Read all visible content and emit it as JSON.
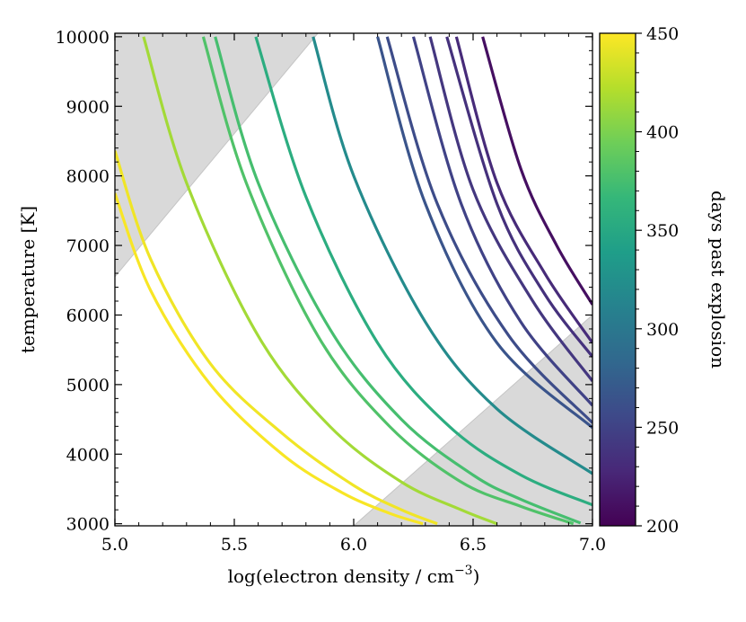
{
  "chart_data": {
    "type": "line",
    "xlabel": "log(electron density / cm",
    "xlabel_superscript": "−3",
    "xlabel_suffix": ")",
    "ylabel": "temperature [K]",
    "xlim": [
      5.0,
      7.0
    ],
    "ylim": [
      2970,
      10050
    ],
    "xticks": [
      5.0,
      5.5,
      6.0,
      6.5,
      7.0
    ],
    "xtick_labels": [
      "5.0",
      "5.5",
      "6.0",
      "6.5",
      "7.0"
    ],
    "yticks": [
      3000,
      4000,
      5000,
      6000,
      7000,
      8000,
      9000,
      10000
    ],
    "ytick_labels": [
      "3000",
      "4000",
      "5000",
      "6000",
      "7000",
      "8000",
      "9000",
      "10000"
    ],
    "colorbar": {
      "label": "days past explosion",
      "range": [
        200,
        450
      ],
      "ticks": [
        200,
        250,
        300,
        350,
        400,
        450
      ],
      "tick_labels": [
        "200",
        "250",
        "300",
        "350",
        "400",
        "450"
      ],
      "colormap": "viridis",
      "colors": [
        "#440154",
        "#482878",
        "#3e4989",
        "#31688e",
        "#26828e",
        "#1f9e89",
        "#35b779",
        "#6ece58",
        "#b5de2b",
        "#fde725"
      ]
    },
    "shaded_regions": [
      {
        "polygon": [
          [
            5.0,
            6550
          ],
          [
            5.0,
            10050
          ],
          [
            5.85,
            10050
          ]
        ],
        "color": "#d9d9d9"
      },
      {
        "polygon": [
          [
            6.0,
            2970
          ],
          [
            7.0,
            6000
          ],
          [
            7.0,
            2970
          ]
        ],
        "color": "#d9d9d9"
      }
    ],
    "series": [
      {
        "day": 210,
        "x": [
          6.54,
          6.7,
          6.85,
          7.0
        ],
        "y": [
          10000,
          8100,
          7000,
          6150
        ]
      },
      {
        "day": 230,
        "x": [
          6.43,
          6.6,
          6.8,
          7.0
        ],
        "y": [
          10000,
          7900,
          6600,
          5600
        ]
      },
      {
        "day": 235,
        "x": [
          6.39,
          6.6,
          6.8,
          7.0
        ],
        "y": [
          10000,
          7600,
          6300,
          5400
        ]
      },
      {
        "day": 240,
        "x": [
          6.32,
          6.5,
          6.75,
          7.0
        ],
        "y": [
          10000,
          7800,
          6200,
          5050
        ]
      },
      {
        "day": 250,
        "x": [
          6.25,
          6.45,
          6.7,
          7.0
        ],
        "y": [
          10000,
          7600,
          5900,
          4700
        ]
      },
      {
        "day": 258,
        "x": [
          6.14,
          6.35,
          6.65,
          7.0
        ],
        "y": [
          10000,
          7600,
          5700,
          4450
        ]
      },
      {
        "day": 265,
        "x": [
          6.1,
          6.3,
          6.6,
          7.0
        ],
        "y": [
          10000,
          7600,
          5600,
          4380
        ]
      },
      {
        "day": 320,
        "x": [
          5.83,
          6.0,
          6.3,
          6.6,
          7.0
        ],
        "y": [
          10000,
          8000,
          5900,
          4650,
          3720
        ]
      },
      {
        "day": 355,
        "x": [
          5.59,
          5.8,
          6.1,
          6.4,
          6.7,
          7.0
        ],
        "y": [
          10000,
          7700,
          5600,
          4400,
          3700,
          3270
        ]
      },
      {
        "day": 375,
        "x": [
          5.42,
          5.6,
          5.9,
          6.2,
          6.5,
          6.7,
          6.95
        ],
        "y": [
          10000,
          7900,
          5800,
          4500,
          3700,
          3350,
          3010
        ]
      },
      {
        "day": 380,
        "x": [
          5.37,
          5.55,
          5.85,
          6.15,
          6.45,
          6.7,
          6.92
        ],
        "y": [
          10000,
          7900,
          5700,
          4400,
          3600,
          3250,
          3000
        ]
      },
      {
        "day": 415,
        "x": [
          5.12,
          5.3,
          5.6,
          5.9,
          6.2,
          6.45,
          6.6
        ],
        "y": [
          10000,
          7900,
          5700,
          4400,
          3600,
          3200,
          3000
        ]
      },
      {
        "day": 445,
        "x": [
          5.0,
          5.15,
          5.4,
          5.7,
          6.0,
          6.2,
          6.35
        ],
        "y": [
          8360,
          6800,
          5300,
          4300,
          3550,
          3200,
          3000
        ]
      },
      {
        "day": 448,
        "x": [
          5.0,
          5.15,
          5.4,
          5.7,
          5.95,
          6.15,
          6.29
        ],
        "y": [
          7750,
          6350,
          5000,
          4000,
          3450,
          3150,
          3000
        ]
      }
    ]
  }
}
